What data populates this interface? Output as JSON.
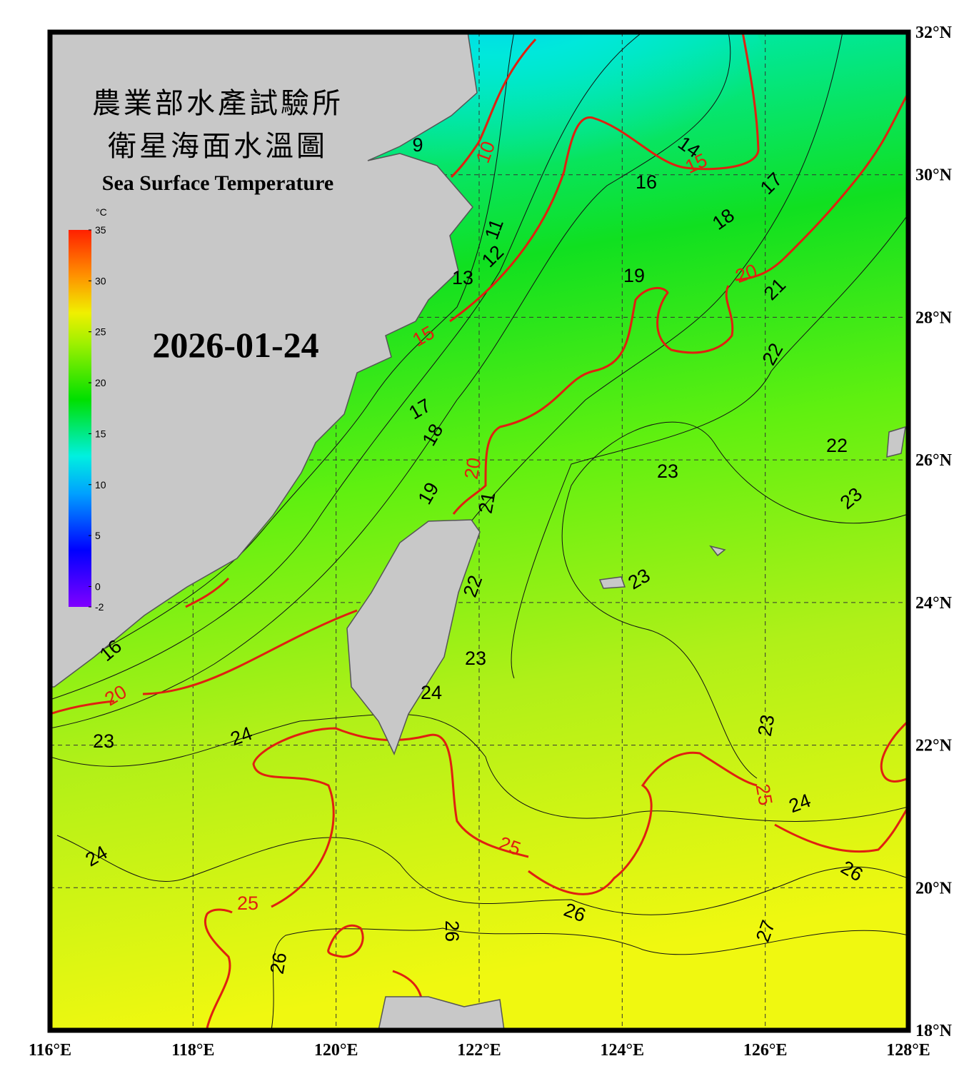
{
  "title_zh": [
    "農業部水產試驗所",
    "衛星海面水溫圖"
  ],
  "title_en": "Sea Surface Temperature",
  "date": "2026-01-24",
  "colorbar": {
    "unit": "°C",
    "ticks": [
      35,
      30,
      25,
      20,
      15,
      10,
      5,
      0,
      -2
    ]
  },
  "axes": {
    "lon_ticks": [
      {
        "value": 116,
        "label": "116°E"
      },
      {
        "value": 118,
        "label": "118°E"
      },
      {
        "value": 120,
        "label": "120°E"
      },
      {
        "value": 122,
        "label": "122°E"
      },
      {
        "value": 124,
        "label": "124°E"
      },
      {
        "value": 126,
        "label": "126°E"
      },
      {
        "value": 128,
        "label": "128°E"
      }
    ],
    "lat_ticks": [
      {
        "value": 32,
        "label": "32°N"
      },
      {
        "value": 30,
        "label": "30°N"
      },
      {
        "value": 28,
        "label": "28°N"
      },
      {
        "value": 26,
        "label": "26°N"
      },
      {
        "value": 24,
        "label": "24°N"
      },
      {
        "value": 22,
        "label": "22°N"
      },
      {
        "value": 20,
        "label": "20°N"
      },
      {
        "value": 18,
        "label": "18°N"
      }
    ]
  },
  "contour_labels": [
    9,
    10,
    14,
    15,
    16,
    17,
    18,
    11,
    12,
    13,
    19,
    20,
    21,
    15,
    22,
    17,
    18,
    20,
    22,
    23,
    23,
    19,
    21,
    22,
    23,
    23,
    24,
    24,
    23,
    23,
    25,
    24,
    25,
    24,
    26,
    25,
    26,
    27,
    26,
    26,
    16,
    20
  ]
}
